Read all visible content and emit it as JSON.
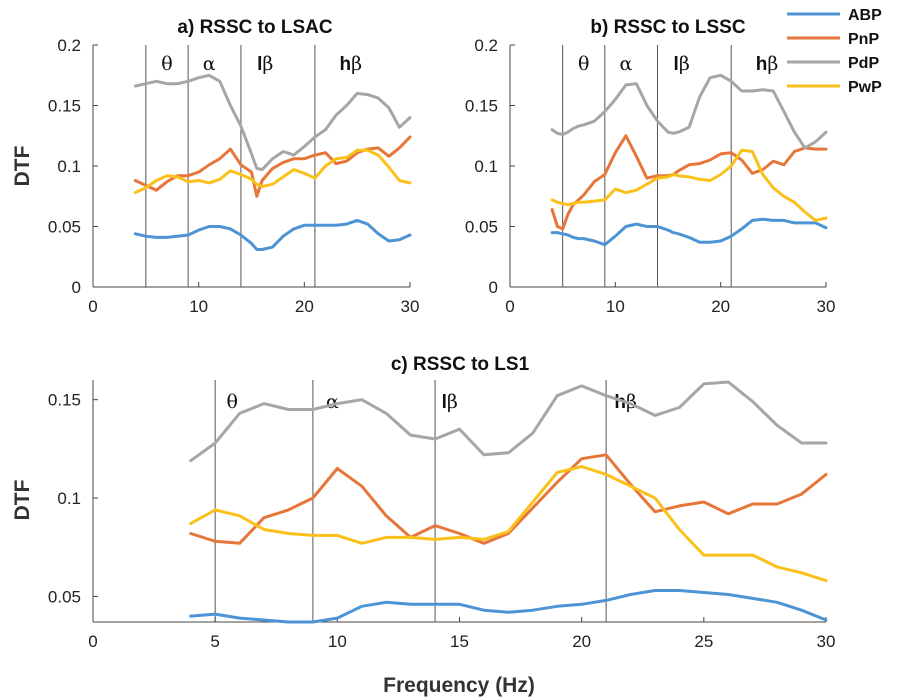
{
  "legend": [
    {
      "name": "ABP",
      "color": "#4d94d4"
    },
    {
      "name": "PnP",
      "color": "#e6763a"
    },
    {
      "name": "PdP",
      "color": "#a6a6a6"
    },
    {
      "name": "PwP",
      "color": "#fbc11a"
    }
  ],
  "xlabel_shared": "Frequency (Hz)",
  "chart_data": [
    {
      "type": "line",
      "title": "a) RSSC to LSAC",
      "xlabel": "",
      "ylabel": "DTF",
      "xlim": [
        0,
        30
      ],
      "ylim": [
        0,
        0.2
      ],
      "xticks": [
        0,
        10,
        20,
        30
      ],
      "yticks": [
        0,
        0.05,
        0.1,
        0.15,
        0.2
      ],
      "ytick_labels": [
        "0",
        "0.05",
        "0.1",
        "0.15",
        "0.2"
      ],
      "band_boundaries": [
        5,
        9,
        14,
        21
      ],
      "bands": [
        {
          "glyph": "",
          "symbol": "θ",
          "x": 7
        },
        {
          "glyph": "",
          "symbol": "α",
          "x": 11
        },
        {
          "glyph": "l",
          "symbol": "β",
          "x": 16.3
        },
        {
          "glyph": "h",
          "symbol": "β",
          "x": 24.4
        }
      ],
      "x": [
        4,
        5,
        6,
        7,
        8,
        9,
        10,
        11,
        12,
        13,
        14,
        15,
        15.5,
        16,
        17,
        18,
        19,
        20,
        21,
        22,
        23,
        24,
        25,
        26,
        27,
        28,
        29,
        30
      ],
      "series": [
        {
          "name": "ABP",
          "values": [
            0.044,
            0.042,
            0.041,
            0.041,
            0.042,
            0.043,
            0.047,
            0.05,
            0.05,
            0.048,
            0.043,
            0.036,
            0.031,
            0.031,
            0.033,
            0.042,
            0.048,
            0.051,
            0.051,
            0.051,
            0.051,
            0.052,
            0.055,
            0.052,
            0.044,
            0.038,
            0.039,
            0.043
          ]
        },
        {
          "name": "PnP",
          "values": [
            0.088,
            0.084,
            0.08,
            0.087,
            0.092,
            0.092,
            0.095,
            0.101,
            0.106,
            0.114,
            0.101,
            0.095,
            0.075,
            0.088,
            0.098,
            0.103,
            0.106,
            0.106,
            0.109,
            0.111,
            0.102,
            0.104,
            0.111,
            0.114,
            0.115,
            0.108,
            0.115,
            0.124
          ]
        },
        {
          "name": "PdP",
          "values": [
            0.166,
            0.168,
            0.17,
            0.168,
            0.168,
            0.17,
            0.173,
            0.175,
            0.17,
            0.15,
            0.133,
            0.11,
            0.098,
            0.097,
            0.106,
            0.112,
            0.109,
            0.116,
            0.124,
            0.13,
            0.142,
            0.15,
            0.16,
            0.159,
            0.156,
            0.148,
            0.132,
            0.14
          ]
        },
        {
          "name": "PwP",
          "values": [
            0.078,
            0.082,
            0.088,
            0.092,
            0.091,
            0.087,
            0.088,
            0.086,
            0.089,
            0.096,
            0.093,
            0.089,
            0.085,
            0.083,
            0.085,
            0.091,
            0.097,
            0.094,
            0.09,
            0.1,
            0.106,
            0.107,
            0.113,
            0.113,
            0.109,
            0.099,
            0.088,
            0.086
          ]
        }
      ]
    },
    {
      "type": "line",
      "title": "b) RSSC to LSSC",
      "xlabel": "",
      "ylabel": "",
      "xlim": [
        0,
        30
      ],
      "ylim": [
        0,
        0.2
      ],
      "xticks": [
        0,
        10,
        20,
        30
      ],
      "yticks": [
        0,
        0.05,
        0.1,
        0.15,
        0.2
      ],
      "ytick_labels": [
        "0",
        "0.05",
        "0.1",
        "0.15",
        "0.2"
      ],
      "band_boundaries": [
        5,
        9,
        14,
        21
      ],
      "bands": [
        {
          "glyph": "",
          "symbol": "θ",
          "x": 7
        },
        {
          "glyph": "",
          "symbol": "α",
          "x": 11
        },
        {
          "glyph": "l",
          "symbol": "β",
          "x": 16.3
        },
        {
          "glyph": "h",
          "symbol": "β",
          "x": 24.4
        }
      ],
      "x": [
        4,
        4.5,
        5,
        5.5,
        6,
        6.5,
        7,
        8,
        9,
        10,
        11,
        12,
        13,
        14,
        15,
        15.5,
        16,
        17,
        18,
        19,
        20,
        21,
        22,
        23,
        24,
        25,
        26,
        27,
        28,
        29,
        30
      ],
      "series": [
        {
          "name": "ABP",
          "values": [
            0.045,
            0.045,
            0.044,
            0.043,
            0.041,
            0.04,
            0.04,
            0.038,
            0.035,
            0.042,
            0.05,
            0.052,
            0.05,
            0.05,
            0.047,
            0.045,
            0.044,
            0.041,
            0.037,
            0.037,
            0.038,
            0.042,
            0.048,
            0.055,
            0.056,
            0.055,
            0.055,
            0.053,
            0.053,
            0.053,
            0.049
          ]
        },
        {
          "name": "PnP",
          "values": [
            0.064,
            0.05,
            0.048,
            0.06,
            0.068,
            0.072,
            0.076,
            0.087,
            0.093,
            0.111,
            0.125,
            0.108,
            0.09,
            0.092,
            0.092,
            0.093,
            0.096,
            0.101,
            0.102,
            0.105,
            0.11,
            0.111,
            0.105,
            0.094,
            0.097,
            0.104,
            0.101,
            0.112,
            0.115,
            0.114,
            0.114
          ]
        },
        {
          "name": "PdP",
          "values": [
            0.13,
            0.127,
            0.126,
            0.128,
            0.131,
            0.133,
            0.134,
            0.137,
            0.145,
            0.155,
            0.167,
            0.168,
            0.15,
            0.137,
            0.128,
            0.127,
            0.128,
            0.132,
            0.157,
            0.173,
            0.175,
            0.17,
            0.162,
            0.162,
            0.163,
            0.162,
            0.145,
            0.128,
            0.115,
            0.12,
            0.128
          ]
        },
        {
          "name": "PwP",
          "values": [
            0.072,
            0.07,
            0.069,
            0.068,
            0.069,
            0.07,
            0.07,
            0.071,
            0.072,
            0.081,
            0.078,
            0.08,
            0.085,
            0.09,
            0.091,
            0.093,
            0.092,
            0.091,
            0.089,
            0.088,
            0.093,
            0.1,
            0.113,
            0.112,
            0.093,
            0.082,
            0.075,
            0.07,
            0.062,
            0.055,
            0.057
          ]
        }
      ]
    },
    {
      "type": "line",
      "title": "c) RSSC to LS1",
      "xlabel": "Frequency (Hz)",
      "ylabel": "DTF",
      "xlim": [
        0,
        30
      ],
      "ylim": [
        0.037,
        0.16
      ],
      "xticks": [
        0,
        5,
        10,
        15,
        20,
        25,
        30
      ],
      "yticks": [
        0.05,
        0.1,
        0.15
      ],
      "ytick_labels": [
        "0.05",
        "0.1",
        "0.15"
      ],
      "band_boundaries": [
        5,
        9,
        14,
        21
      ],
      "bands": [
        {
          "glyph": "",
          "symbol": "θ",
          "x": 5.7
        },
        {
          "glyph": "",
          "symbol": "α",
          "x": 9.8
        },
        {
          "glyph": "l",
          "symbol": "β",
          "x": 14.6
        },
        {
          "glyph": "h",
          "symbol": "β",
          "x": 21.8
        }
      ],
      "x": [
        4,
        5,
        6,
        7,
        8,
        9,
        10,
        11,
        12,
        13,
        14,
        15,
        16,
        17,
        18,
        19,
        20,
        21,
        22,
        23,
        24,
        25,
        26,
        27,
        28,
        29,
        30
      ],
      "series": [
        {
          "name": "ABP",
          "values": [
            0.04,
            0.041,
            0.039,
            0.038,
            0.037,
            0.037,
            0.039,
            0.045,
            0.047,
            0.046,
            0.046,
            0.046,
            0.043,
            0.042,
            0.043,
            0.045,
            0.046,
            0.048,
            0.051,
            0.053,
            0.053,
            0.052,
            0.051,
            0.049,
            0.047,
            0.043,
            0.038
          ]
        },
        {
          "name": "PnP",
          "values": [
            0.082,
            0.078,
            0.077,
            0.09,
            0.094,
            0.1,
            0.115,
            0.106,
            0.091,
            0.08,
            0.086,
            0.082,
            0.077,
            0.082,
            0.095,
            0.108,
            0.12,
            0.122,
            0.107,
            0.093,
            0.096,
            0.098,
            0.092,
            0.097,
            0.097,
            0.102,
            0.112
          ]
        },
        {
          "name": "PdP",
          "values": [
            0.119,
            0.128,
            0.143,
            0.148,
            0.145,
            0.145,
            0.148,
            0.15,
            0.143,
            0.132,
            0.13,
            0.135,
            0.122,
            0.123,
            0.133,
            0.152,
            0.157,
            0.152,
            0.148,
            0.142,
            0.146,
            0.158,
            0.159,
            0.149,
            0.137,
            0.128,
            0.128
          ]
        },
        {
          "name": "PwP",
          "values": [
            0.087,
            0.094,
            0.091,
            0.084,
            0.082,
            0.081,
            0.081,
            0.077,
            0.08,
            0.08,
            0.079,
            0.08,
            0.079,
            0.083,
            0.098,
            0.113,
            0.116,
            0.112,
            0.106,
            0.1,
            0.084,
            0.071,
            0.071,
            0.071,
            0.065,
            0.062,
            0.058
          ]
        }
      ]
    }
  ]
}
